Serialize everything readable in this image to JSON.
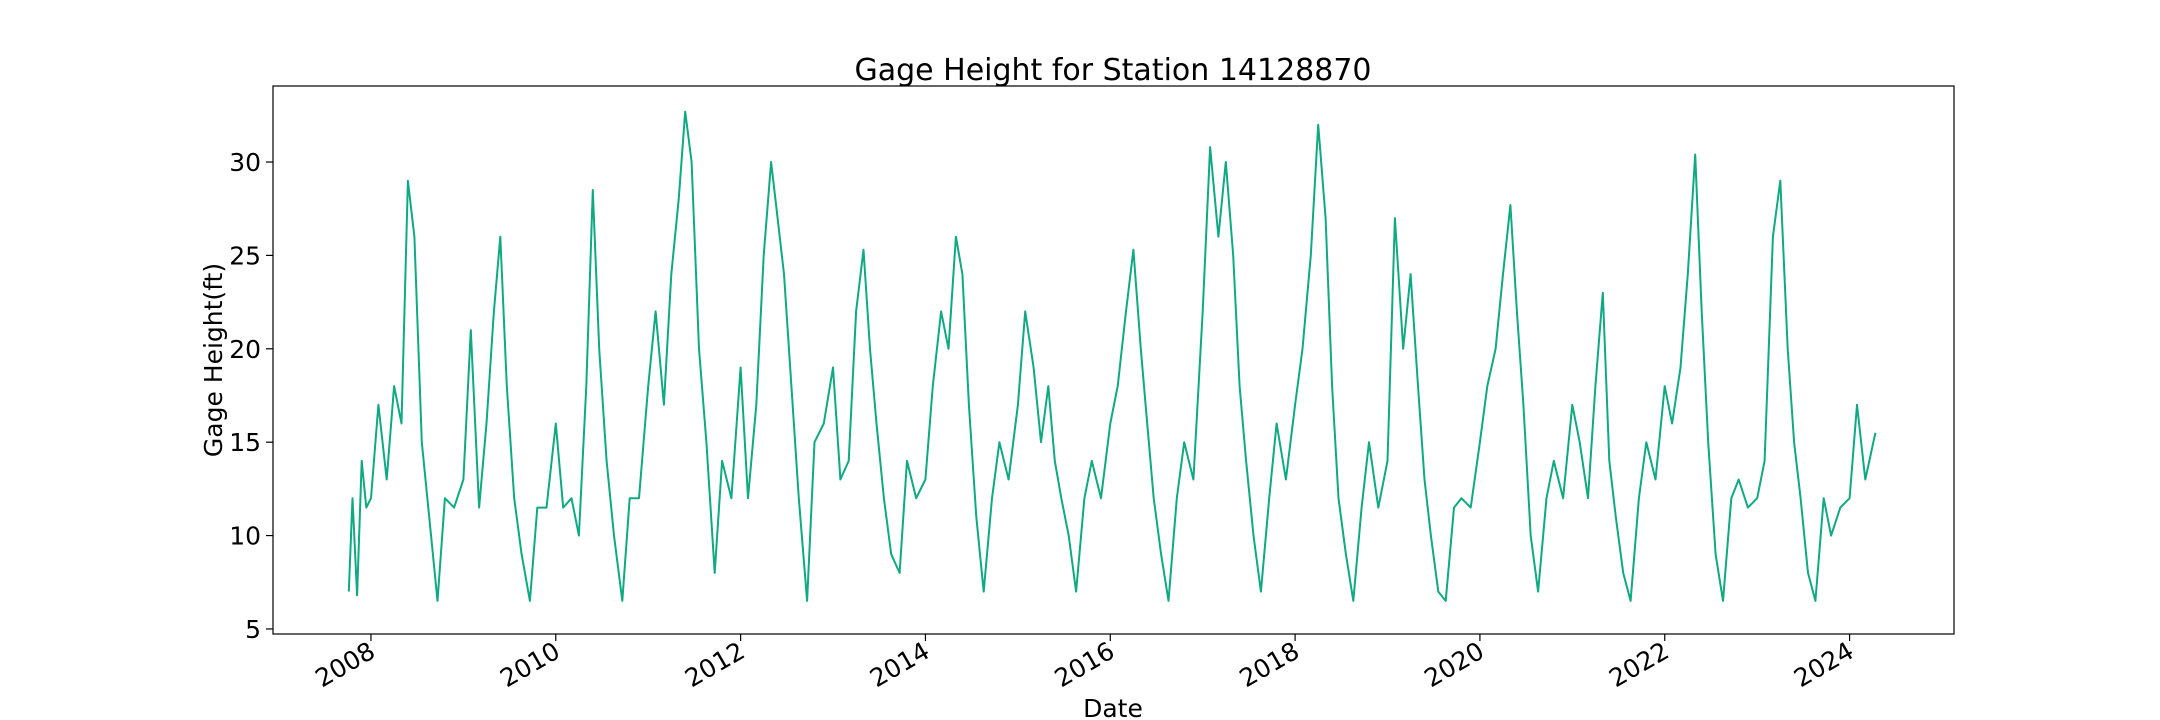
{
  "chart_data": {
    "type": "line",
    "title": "Gage Height for Station 14128870",
    "xlabel": "Date",
    "ylabel": "Gage Height(ft)",
    "xlim": [
      2006.94,
      2025.13
    ],
    "xticks": [
      2008,
      2010,
      2012,
      2014,
      2016,
      2018,
      2020,
      2022,
      2024
    ],
    "ylim": [
      4.73,
      34.07
    ],
    "yticks": [
      5,
      10,
      15,
      20,
      25,
      30
    ],
    "grid": false,
    "x": [
      2007.76,
      2007.8,
      2007.85,
      2007.9,
      2007.95,
      2008.0,
      2008.08,
      2008.17,
      2008.25,
      2008.33,
      2008.4,
      2008.47,
      2008.55,
      2008.63,
      2008.72,
      2008.8,
      2008.9,
      2009.0,
      2009.08,
      2009.17,
      2009.25,
      2009.33,
      2009.4,
      2009.47,
      2009.55,
      2009.63,
      2009.72,
      2009.8,
      2009.9,
      2010.0,
      2010.08,
      2010.17,
      2010.25,
      2010.33,
      2010.4,
      2010.47,
      2010.55,
      2010.63,
      2010.72,
      2010.8,
      2010.9,
      2011.0,
      2011.08,
      2011.17,
      2011.25,
      2011.33,
      2011.4,
      2011.47,
      2011.55,
      2011.63,
      2011.72,
      2011.8,
      2011.9,
      2012.0,
      2012.08,
      2012.17,
      2012.25,
      2012.33,
      2012.4,
      2012.47,
      2012.55,
      2012.63,
      2012.72,
      2012.8,
      2012.9,
      2013.0,
      2013.08,
      2013.17,
      2013.25,
      2013.33,
      2013.4,
      2013.47,
      2013.55,
      2013.63,
      2013.72,
      2013.8,
      2013.9,
      2014.0,
      2014.08,
      2014.17,
      2014.25,
      2014.33,
      2014.4,
      2014.47,
      2014.55,
      2014.63,
      2014.72,
      2014.8,
      2014.9,
      2015.0,
      2015.08,
      2015.17,
      2015.25,
      2015.33,
      2015.4,
      2015.47,
      2015.55,
      2015.63,
      2015.72,
      2015.8,
      2015.9,
      2016.0,
      2016.08,
      2016.17,
      2016.25,
      2016.33,
      2016.4,
      2016.47,
      2016.55,
      2016.63,
      2016.72,
      2016.8,
      2016.9,
      2017.0,
      2017.08,
      2017.17,
      2017.25,
      2017.33,
      2017.4,
      2017.47,
      2017.55,
      2017.63,
      2017.72,
      2017.8,
      2017.9,
      2018.0,
      2018.08,
      2018.17,
      2018.25,
      2018.33,
      2018.4,
      2018.47,
      2018.55,
      2018.63,
      2018.72,
      2018.8,
      2018.9,
      2019.0,
      2019.08,
      2019.17,
      2019.25,
      2019.33,
      2019.4,
      2019.47,
      2019.55,
      2019.63,
      2019.72,
      2019.8,
      2019.9,
      2020.0,
      2020.08,
      2020.17,
      2020.25,
      2020.33,
      2020.4,
      2020.47,
      2020.55,
      2020.63,
      2020.72,
      2020.8,
      2020.9,
      2021.0,
      2021.08,
      2021.17,
      2021.25,
      2021.33,
      2021.4,
      2021.47,
      2021.55,
      2021.63,
      2021.72,
      2021.8,
      2021.9,
      2022.0,
      2022.08,
      2022.17,
      2022.25,
      2022.33,
      2022.4,
      2022.47,
      2022.55,
      2022.63,
      2022.72,
      2022.8,
      2022.9,
      2023.0,
      2023.08,
      2023.17,
      2023.25,
      2023.33,
      2023.4,
      2023.47,
      2023.55,
      2023.63,
      2023.72,
      2023.8,
      2023.9,
      2024.0,
      2024.08,
      2024.17,
      2024.28
    ],
    "series": [
      {
        "color": "#0fa982",
        "values": [
          7,
          12,
          6.8,
          14,
          11.5,
          12,
          17,
          13,
          18,
          16,
          29,
          26,
          15,
          11,
          6.5,
          12,
          11.5,
          13,
          21,
          11.5,
          16,
          22,
          26,
          18,
          12,
          9,
          6.5,
          11.5,
          11.5,
          16,
          11.5,
          12,
          10,
          18,
          28.5,
          20,
          14,
          10,
          6.5,
          12,
          12,
          18,
          22,
          17,
          24,
          28,
          32.7,
          30,
          20,
          15,
          8,
          14,
          12,
          19,
          12,
          17,
          25,
          30,
          27,
          24,
          18,
          12,
          6.5,
          15,
          16,
          19,
          13,
          14,
          22,
          25.3,
          20,
          16,
          12,
          9,
          8,
          14,
          12,
          13,
          18,
          22,
          20,
          26,
          24,
          17,
          11,
          7,
          12,
          15,
          13,
          17,
          22,
          19,
          15,
          18,
          14,
          12,
          10,
          7,
          12,
          14,
          12,
          16,
          18,
          22,
          25.3,
          20,
          16,
          12,
          9,
          6.5,
          12,
          15,
          13,
          22,
          30.8,
          26,
          30,
          25,
          18,
          14,
          10,
          7,
          12,
          16,
          13,
          17,
          20,
          25,
          32,
          27,
          18,
          12,
          9,
          6.5,
          11.5,
          15,
          11.5,
          14,
          27,
          20,
          24,
          18,
          13,
          10,
          7,
          6.5,
          11.5,
          12,
          11.5,
          15,
          18,
          20,
          24,
          27.7,
          22,
          17,
          10,
          7,
          12,
          14,
          12,
          17,
          15,
          12,
          18,
          23,
          14,
          11,
          8,
          6.5,
          12,
          15,
          13,
          18,
          16,
          19,
          24,
          30.4,
          22,
          15,
          9,
          6.5,
          12,
          13,
          11.5,
          12,
          14,
          26,
          29,
          20,
          15,
          12,
          8,
          6.5,
          12,
          10,
          11.5,
          12,
          17,
          13,
          15.5
        ]
      }
    ]
  }
}
